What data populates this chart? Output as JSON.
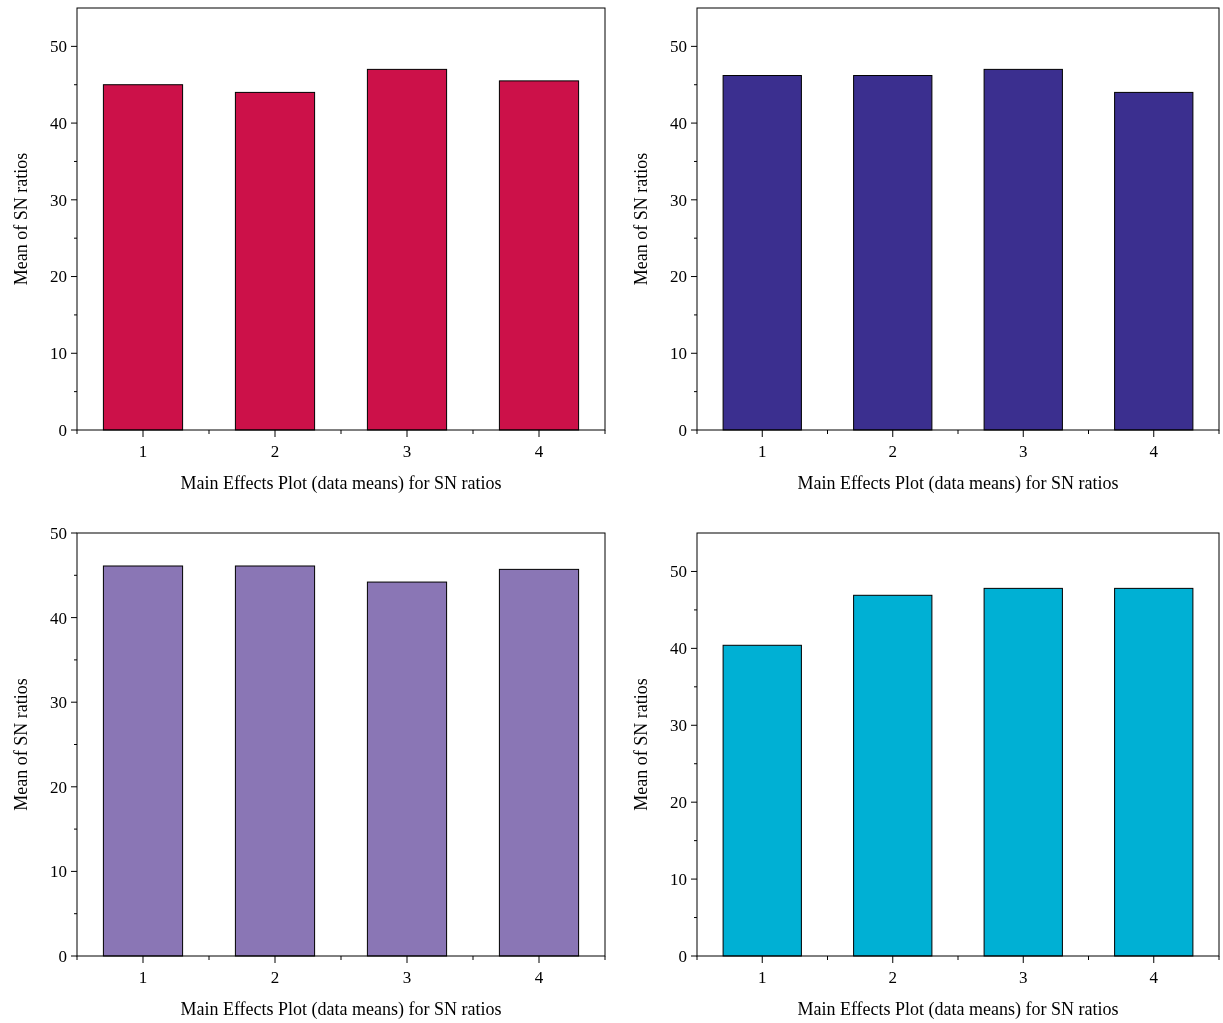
{
  "chart_data": [
    {
      "type": "bar",
      "categories": [
        "1",
        "2",
        "3",
        "4"
      ],
      "values": [
        45,
        44,
        47,
        45.5
      ],
      "color": "#cc1149",
      "xlabel": "Main Effects Plot (data means) for SN ratios",
      "ylabel": "Mean of SN ratios",
      "ylim": [
        0,
        55
      ],
      "yticks": [
        0,
        {
          "value": 5,
          "label": null
        },
        10,
        {
          "value": 15,
          "label": null
        },
        20,
        {
          "value": 25,
          "label": null
        },
        30,
        {
          "value": 35,
          "label": null
        },
        40,
        {
          "value": 45,
          "label": null
        },
        50
      ]
    },
    {
      "type": "bar",
      "categories": [
        "1",
        "2",
        "3",
        "4"
      ],
      "values": [
        46.2,
        46.2,
        47,
        44
      ],
      "color": "#3b2f8f",
      "xlabel": "Main Effects Plot (data means) for SN ratios",
      "ylabel": "Mean of SN ratios",
      "ylim": [
        0,
        55
      ],
      "yticks": [
        0,
        {
          "value": 5,
          "label": null
        },
        10,
        {
          "value": 15,
          "label": null
        },
        20,
        {
          "value": 25,
          "label": null
        },
        30,
        {
          "value": 35,
          "label": null
        },
        40,
        {
          "value": 45,
          "label": null
        },
        50
      ]
    },
    {
      "type": "bar",
      "categories": [
        "1",
        "2",
        "3",
        "4"
      ],
      "values": [
        46.1,
        46.1,
        44.2,
        45.7
      ],
      "color": "#8a76b5",
      "xlabel": "Main Effects Plot (data means) for SN ratios",
      "ylabel": "Mean of SN ratios",
      "ylim": [
        0,
        50
      ],
      "yticks": [
        0,
        {
          "value": 5,
          "label": null
        },
        10,
        {
          "value": 15,
          "label": null
        },
        20,
        {
          "value": 25,
          "label": null
        },
        30,
        {
          "value": 35,
          "label": null
        },
        40,
        {
          "value": 45,
          "label": null
        },
        50
      ]
    },
    {
      "type": "bar",
      "categories": [
        "1",
        "2",
        "3",
        "4"
      ],
      "values": [
        40.4,
        46.9,
        47.8,
        47.8
      ],
      "color": "#00b0d4",
      "xlabel": "Main Effects Plot (data means) for SN ratios",
      "ylabel": "Mean of SN ratios",
      "ylim": [
        0,
        55
      ],
      "yticks": [
        0,
        {
          "value": 5,
          "label": null
        },
        10,
        {
          "value": 15,
          "label": null
        },
        20,
        {
          "value": 25,
          "label": null
        },
        30,
        {
          "value": 35,
          "label": null
        },
        40,
        {
          "value": 45,
          "label": null
        },
        50
      ]
    }
  ]
}
